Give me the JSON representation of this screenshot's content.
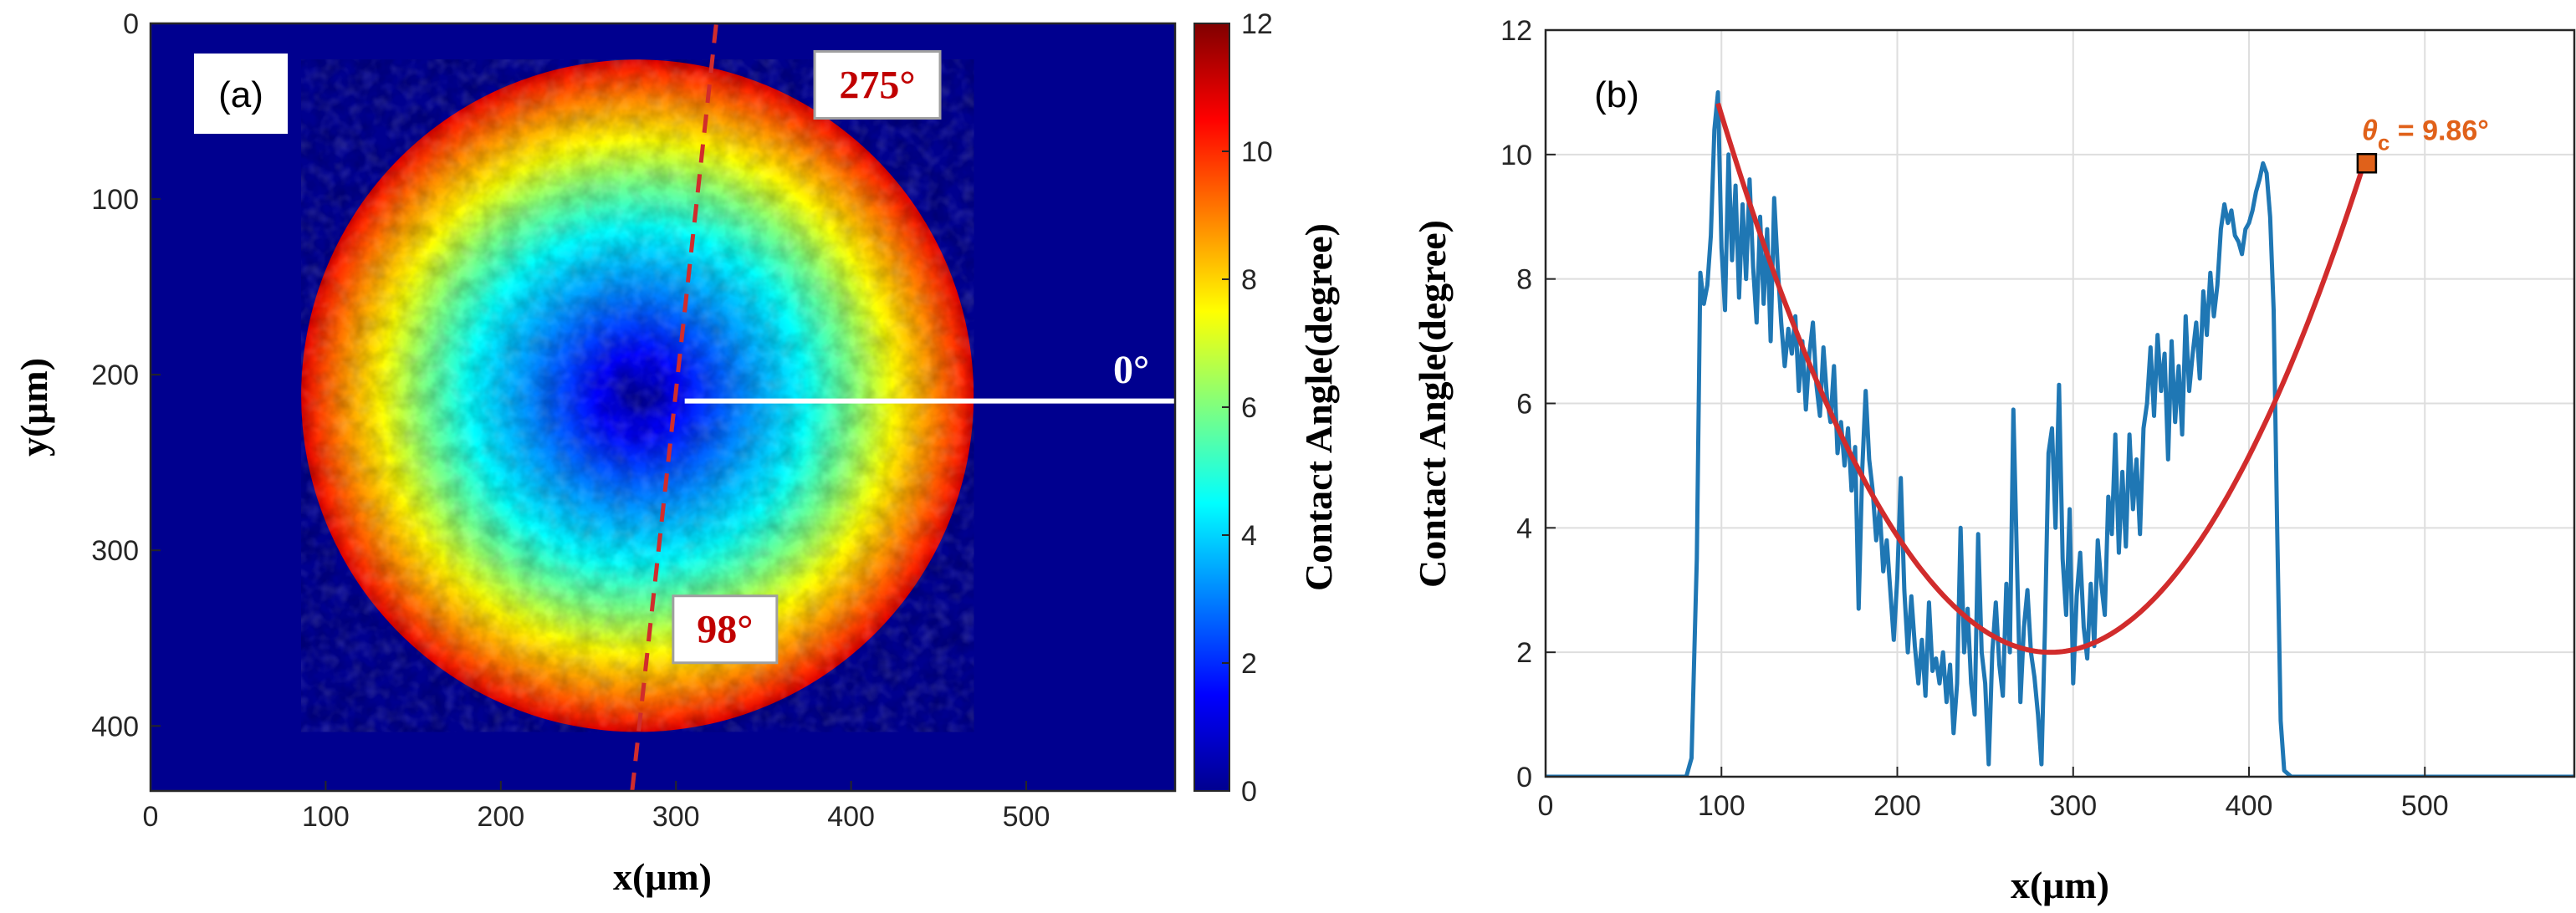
{
  "chart_data": [
    {
      "type": "heatmap",
      "panel_label": "(a)",
      "xlabel": "x(μm)",
      "ylabel": "y(μm)",
      "xlim": [
        0,
        585
      ],
      "ylim": [
        0,
        437
      ],
      "y_reversed": true,
      "x_ticks": [
        "0",
        "100",
        "200",
        "300",
        "400",
        "500"
      ],
      "y_ticks": [
        "0",
        "100",
        "200",
        "300",
        "400"
      ],
      "colorbar": {
        "label": "Contact Angle(degree)",
        "range": [
          0,
          12
        ],
        "ticks": [
          "0",
          "2",
          "4",
          "6",
          "8",
          "10",
          "12"
        ],
        "colormap": "jet"
      },
      "droplet": {
        "center_x": 278,
        "center_y": 212,
        "radius": 192,
        "center_angle_min": 0.5,
        "edge_angle_max": 11
      },
      "annotations": [
        {
          "text": "275°",
          "x": 415,
          "y": 35,
          "style": "boxed-red"
        },
        {
          "text": "98°",
          "x": 328,
          "y": 345,
          "style": "boxed-red"
        },
        {
          "text": "0°",
          "x": 560,
          "y": 200,
          "style": "white"
        }
      ],
      "rays": [
        {
          "name": "0° direction",
          "from": [
            305,
            215
          ],
          "to": [
            585,
            215
          ],
          "color": "#ffffff",
          "dashed": false
        },
        {
          "name": "98°–275° direction",
          "from": [
            275,
            437
          ],
          "to": [
            323,
            0
          ],
          "color": "#d12c2c",
          "dashed": true
        }
      ]
    },
    {
      "type": "line",
      "panel_label": "(b)",
      "xlabel": "x(μm)",
      "ylabel": "Contact Angle(degree)",
      "xlim": [
        0,
        585
      ],
      "ylim": [
        0,
        12
      ],
      "x_ticks": [
        "0",
        "100",
        "200",
        "300",
        "400",
        "500"
      ],
      "y_ticks": [
        "0",
        "2",
        "4",
        "6",
        "8",
        "10",
        "12"
      ],
      "grid": true,
      "series": [
        {
          "name": "Measured profile",
          "color": "#1f77b4",
          "points": [
            [
              0,
              0
            ],
            [
              80,
              0
            ],
            [
              83,
              0.3
            ],
            [
              86,
              3.5
            ],
            [
              88,
              8.1
            ],
            [
              90,
              7.6
            ],
            [
              92,
              7.9
            ],
            [
              94,
              8.7
            ],
            [
              96,
              10.4
            ],
            [
              98,
              11.0
            ],
            [
              100,
              8.5
            ],
            [
              102,
              7.5
            ],
            [
              104,
              10.0
            ],
            [
              106,
              8.3
            ],
            [
              108,
              9.5
            ],
            [
              110,
              7.7
            ],
            [
              112,
              9.2
            ],
            [
              114,
              8.0
            ],
            [
              116,
              9.6
            ],
            [
              118,
              8.2
            ],
            [
              120,
              7.3
            ],
            [
              122,
              9.0
            ],
            [
              124,
              7.6
            ],
            [
              126,
              8.8
            ],
            [
              128,
              7.0
            ],
            [
              130,
              9.3
            ],
            [
              132,
              8.2
            ],
            [
              134,
              7.3
            ],
            [
              136,
              6.6
            ],
            [
              138,
              7.2
            ],
            [
              140,
              6.8
            ],
            [
              142,
              7.4
            ],
            [
              144,
              6.2
            ],
            [
              146,
              7.0
            ],
            [
              148,
              5.9
            ],
            [
              150,
              6.8
            ],
            [
              152,
              7.3
            ],
            [
              154,
              6.3
            ],
            [
              156,
              5.8
            ],
            [
              158,
              6.9
            ],
            [
              160,
              6.1
            ],
            [
              162,
              5.7
            ],
            [
              164,
              6.6
            ],
            [
              166,
              5.2
            ],
            [
              168,
              5.7
            ],
            [
              170,
              5.0
            ],
            [
              172,
              5.6
            ],
            [
              174,
              4.6
            ],
            [
              176,
              5.3
            ],
            [
              178,
              2.7
            ],
            [
              180,
              4.9
            ],
            [
              182,
              6.2
            ],
            [
              184,
              5.1
            ],
            [
              186,
              4.6
            ],
            [
              188,
              3.8
            ],
            [
              190,
              4.3
            ],
            [
              192,
              3.3
            ],
            [
              194,
              3.8
            ],
            [
              196,
              3.0
            ],
            [
              198,
              2.2
            ],
            [
              200,
              3.2
            ],
            [
              202,
              4.8
            ],
            [
              204,
              3.0
            ],
            [
              206,
              2.0
            ],
            [
              208,
              2.9
            ],
            [
              210,
              2.1
            ],
            [
              212,
              1.5
            ],
            [
              214,
              2.2
            ],
            [
              216,
              1.3
            ],
            [
              218,
              2.8
            ],
            [
              220,
              1.7
            ],
            [
              222,
              1.9
            ],
            [
              224,
              1.5
            ],
            [
              226,
              2.0
            ],
            [
              228,
              1.2
            ],
            [
              230,
              1.8
            ],
            [
              232,
              0.7
            ],
            [
              234,
              1.5
            ],
            [
              236,
              4.0
            ],
            [
              238,
              2.0
            ],
            [
              240,
              2.7
            ],
            [
              242,
              1.5
            ],
            [
              244,
              1.0
            ],
            [
              246,
              3.9
            ],
            [
              248,
              2.0
            ],
            [
              250,
              1.5
            ],
            [
              252,
              0.2
            ],
            [
              254,
              2.0
            ],
            [
              256,
              2.8
            ],
            [
              258,
              1.8
            ],
            [
              260,
              1.3
            ],
            [
              262,
              3.1
            ],
            [
              264,
              2.0
            ],
            [
              266,
              5.9
            ],
            [
              268,
              3.5
            ],
            [
              270,
              1.2
            ],
            [
              272,
              2.4
            ],
            [
              274,
              3.0
            ],
            [
              276,
              2.0
            ],
            [
              278,
              1.6
            ],
            [
              280,
              1.0
            ],
            [
              282,
              0.2
            ],
            [
              284,
              2.4
            ],
            [
              286,
              5.2
            ],
            [
              288,
              5.6
            ],
            [
              290,
              4.0
            ],
            [
              292,
              6.3
            ],
            [
              294,
              3.5
            ],
            [
              296,
              2.6
            ],
            [
              298,
              4.3
            ],
            [
              300,
              1.5
            ],
            [
              302,
              2.9
            ],
            [
              304,
              3.6
            ],
            [
              306,
              2.4
            ],
            [
              308,
              1.9
            ],
            [
              310,
              3.1
            ],
            [
              312,
              2.1
            ],
            [
              314,
              3.8
            ],
            [
              316,
              3.1
            ],
            [
              318,
              2.6
            ],
            [
              320,
              4.5
            ],
            [
              322,
              3.9
            ],
            [
              324,
              5.5
            ],
            [
              326,
              3.6
            ],
            [
              328,
              4.9
            ],
            [
              330,
              3.7
            ],
            [
              332,
              5.5
            ],
            [
              334,
              4.3
            ],
            [
              336,
              5.1
            ],
            [
              338,
              3.9
            ],
            [
              340,
              5.6
            ],
            [
              342,
              6.0
            ],
            [
              344,
              6.9
            ],
            [
              346,
              5.8
            ],
            [
              348,
              7.1
            ],
            [
              350,
              6.2
            ],
            [
              352,
              6.8
            ],
            [
              354,
              5.1
            ],
            [
              356,
              7.0
            ],
            [
              358,
              5.7
            ],
            [
              360,
              6.6
            ],
            [
              362,
              5.5
            ],
            [
              364,
              7.4
            ],
            [
              366,
              6.2
            ],
            [
              368,
              6.8
            ],
            [
              370,
              7.3
            ],
            [
              372,
              6.4
            ],
            [
              374,
              7.8
            ],
            [
              376,
              7.1
            ],
            [
              378,
              8.1
            ],
            [
              380,
              7.4
            ],
            [
              382,
              7.9
            ],
            [
              384,
              8.8
            ],
            [
              386,
              9.2
            ],
            [
              388,
              8.9
            ],
            [
              390,
              9.1
            ],
            [
              392,
              8.7
            ],
            [
              394,
              8.6
            ],
            [
              396,
              8.4
            ],
            [
              398,
              8.8
            ],
            [
              400,
              8.9
            ],
            [
              402,
              9.1
            ],
            [
              404,
              9.4
            ],
            [
              406,
              9.6
            ],
            [
              408,
              9.86
            ],
            [
              410,
              9.7
            ],
            [
              412,
              9.0
            ],
            [
              414,
              7.5
            ],
            [
              416,
              4.0
            ],
            [
              418,
              0.9
            ],
            [
              420,
              0.1
            ],
            [
              424,
              0
            ],
            [
              585,
              0
            ]
          ]
        },
        {
          "name": "Fitted curve",
          "color": "#d12c2c",
          "fit": {
            "vertex_x": 287,
            "vertex_y": 2.0,
            "k": 0.000247,
            "x_start": 98,
            "x_end": 467
          }
        }
      ],
      "annotations": [
        {
          "text": "θc = 9.86°",
          "symbol": "θ",
          "subscript": "c",
          "value_text": " = 9.86°",
          "x": 467,
          "y": 9.86,
          "marker": "square"
        }
      ]
    }
  ]
}
